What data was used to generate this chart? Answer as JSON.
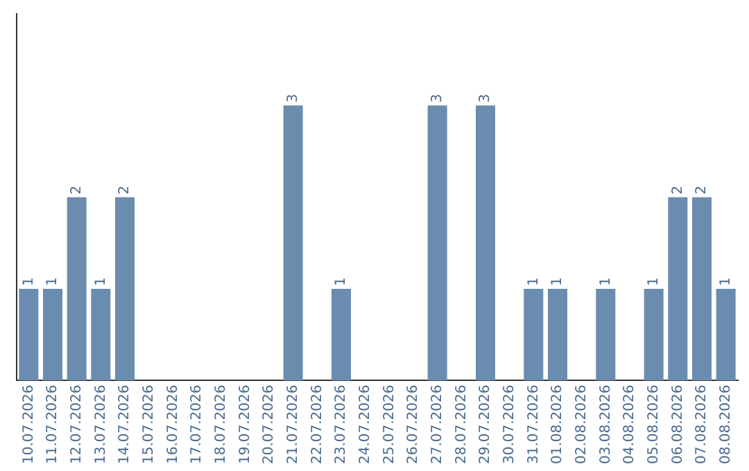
{
  "chart_data": {
    "type": "bar",
    "categories": [
      "10.07.2026",
      "11.07.2026",
      "12.07.2026",
      "13.07.2026",
      "14.07.2026",
      "15.07.2026",
      "16.07.2026",
      "17.07.2026",
      "18.07.2026",
      "19.07.2026",
      "20.07.2026",
      "21.07.2026",
      "22.07.2026",
      "23.07.2026",
      "24.07.2026",
      "25.07.2026",
      "26.07.2026",
      "27.07.2026",
      "28.07.2026",
      "29.07.2026",
      "30.07.2026",
      "31.07.2026",
      "01.08.2026",
      "02.08.2026",
      "03.08.2026",
      "04.08.2026",
      "05.08.2026",
      "06.08.2026",
      "07.08.2026",
      "08.08.2026"
    ],
    "values": [
      1,
      1,
      2,
      1,
      2,
      0,
      0,
      0,
      0,
      0,
      0,
      3,
      0,
      1,
      0,
      0,
      0,
      3,
      0,
      3,
      0,
      1,
      1,
      0,
      1,
      0,
      1,
      2,
      2,
      1
    ],
    "value_labels": [
      "1",
      "1",
      "2",
      "1",
      "2",
      null,
      null,
      null,
      null,
      null,
      null,
      "3",
      null,
      "1",
      null,
      null,
      null,
      "3",
      null,
      "3",
      null,
      "1",
      "1",
      null,
      "1",
      null,
      "1",
      "2",
      "2",
      "1"
    ],
    "color": "#6a8caf",
    "tick_labels": "x",
    "grid": false,
    "legend": false
  }
}
